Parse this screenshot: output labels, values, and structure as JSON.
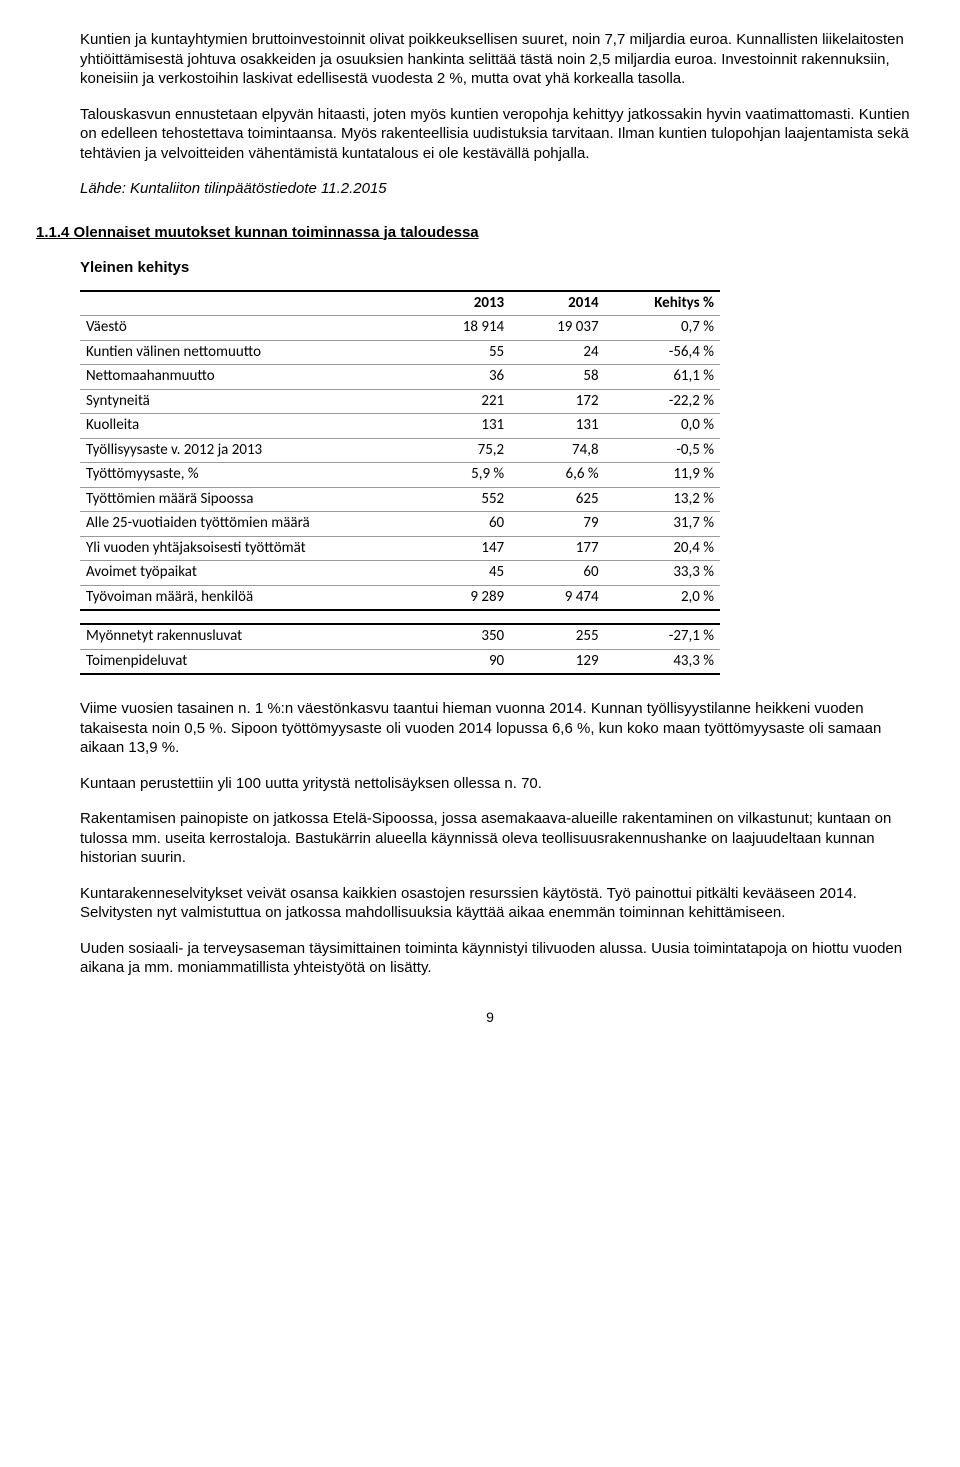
{
  "p1": "Kuntien ja kuntayhtymien bruttoinvestoinnit olivat poikkeuksellisen suuret, noin 7,7 miljardia euroa. Kunnallisten liikelaitosten yhtiöittämisestä johtuva osakkeiden ja osuuksien hankinta selittää tästä noin 2,5 miljardia euroa. Investoinnit rakennuksiin, koneisiin ja verkostoihin laskivat edellisestä vuodesta 2 %, mutta ovat yhä korkealla tasolla.",
  "p2": "Talouskasvun ennustetaan elpyvän hitaasti, joten myös kuntien veropohja kehittyy jatkossakin hyvin vaatimattomasti. Kuntien on edelleen tehostettava toimintaansa. Myös rakenteellisia uudistuksia tarvitaan. Ilman kuntien tulopohjan laajentamista sekä tehtävien ja velvoitteiden vähentämistä kuntatalous ei ole kestävällä pohjalla.",
  "p3": "Lähde: Kuntaliiton tilinpäätöstiedote 11.2.2015",
  "heading": "1.1.4 Olennaiset muutokset kunnan toiminnassa ja taloudessa",
  "subheading": "Yleinen kehitys",
  "table1": {
    "headers": [
      "",
      "2013",
      "2014",
      "Kehitys %"
    ],
    "rows": [
      [
        "Väestö",
        "18 914",
        "19 037",
        "0,7 %"
      ],
      [
        "Kuntien välinen nettomuutto",
        "55",
        "24",
        "-56,4 %"
      ],
      [
        "Nettomaahanmuutto",
        "36",
        "58",
        "61,1 %"
      ],
      [
        "Syntyneitä",
        "221",
        "172",
        "-22,2 %"
      ],
      [
        "Kuolleita",
        "131",
        "131",
        "0,0 %"
      ],
      [
        "Työllisyysaste v. 2012 ja 2013",
        "75,2",
        "74,8",
        "-0,5 %"
      ],
      [
        "Työttömyysaste, %",
        "5,9 %",
        "6,6 %",
        "11,9 %"
      ],
      [
        "Työttömien määrä Sipoossa",
        "552",
        "625",
        "13,2 %"
      ],
      [
        "Alle 25-vuotiaiden työttömien määrä",
        "60",
        "79",
        "31,7 %"
      ],
      [
        "Yli vuoden yhtäjaksoisesti työttömät",
        "147",
        "177",
        "20,4 %"
      ],
      [
        "Avoimet työpaikat",
        "45",
        "60",
        "33,3 %"
      ],
      [
        "Työvoiman määrä, henkilöä",
        "9 289",
        "9 474",
        "2,0 %"
      ]
    ]
  },
  "table2": {
    "rows": [
      [
        "Myönnetyt rakennusluvat",
        "350",
        "255",
        "-27,1 %"
      ],
      [
        "Toimenpideluvat",
        "90",
        "129",
        "43,3 %"
      ]
    ]
  },
  "p4": "Viime vuosien tasainen n. 1 %:n väestönkasvu taantui hieman vuonna 2014. Kunnan työllisyystilanne heikkeni vuoden takaisesta noin 0,5 %. Sipoon työttömyysaste oli vuoden 2014 lopussa 6,6 %, kun koko maan työttömyysaste oli samaan aikaan 13,9 %.",
  "p5": "Kuntaan perustettiin yli 100 uutta yritystä nettolisäyksen ollessa n. 70.",
  "p6": "Rakentamisen painopiste on jatkossa Etelä-Sipoossa, jossa asemakaava-alueille rakentaminen on vilkastunut; kuntaan on tulossa mm. useita kerrostaloja. Bastukärrin alueella käynnissä oleva teollisuusrakennushanke on laajuudeltaan kunnan historian suurin.",
  "p7": "Kuntarakenneselvitykset veivät osansa kaikkien osastojen resurssien käytöstä. Työ painottui pitkälti kevääseen 2014. Selvitysten nyt valmistuttua on jatkossa mahdollisuuksia käyttää aikaa enemmän toiminnan kehittämiseen.",
  "p8": "Uuden sosiaali- ja terveysaseman täysimittainen toiminta käynnistyi tilivuoden alussa. Uusia toimintatapoja on hiottu vuoden aikana ja mm. moniammatillista yhteistyötä on lisätty.",
  "pageNum": "9",
  "colWidths": [
    "320px",
    "90px",
    "90px",
    "110px"
  ]
}
